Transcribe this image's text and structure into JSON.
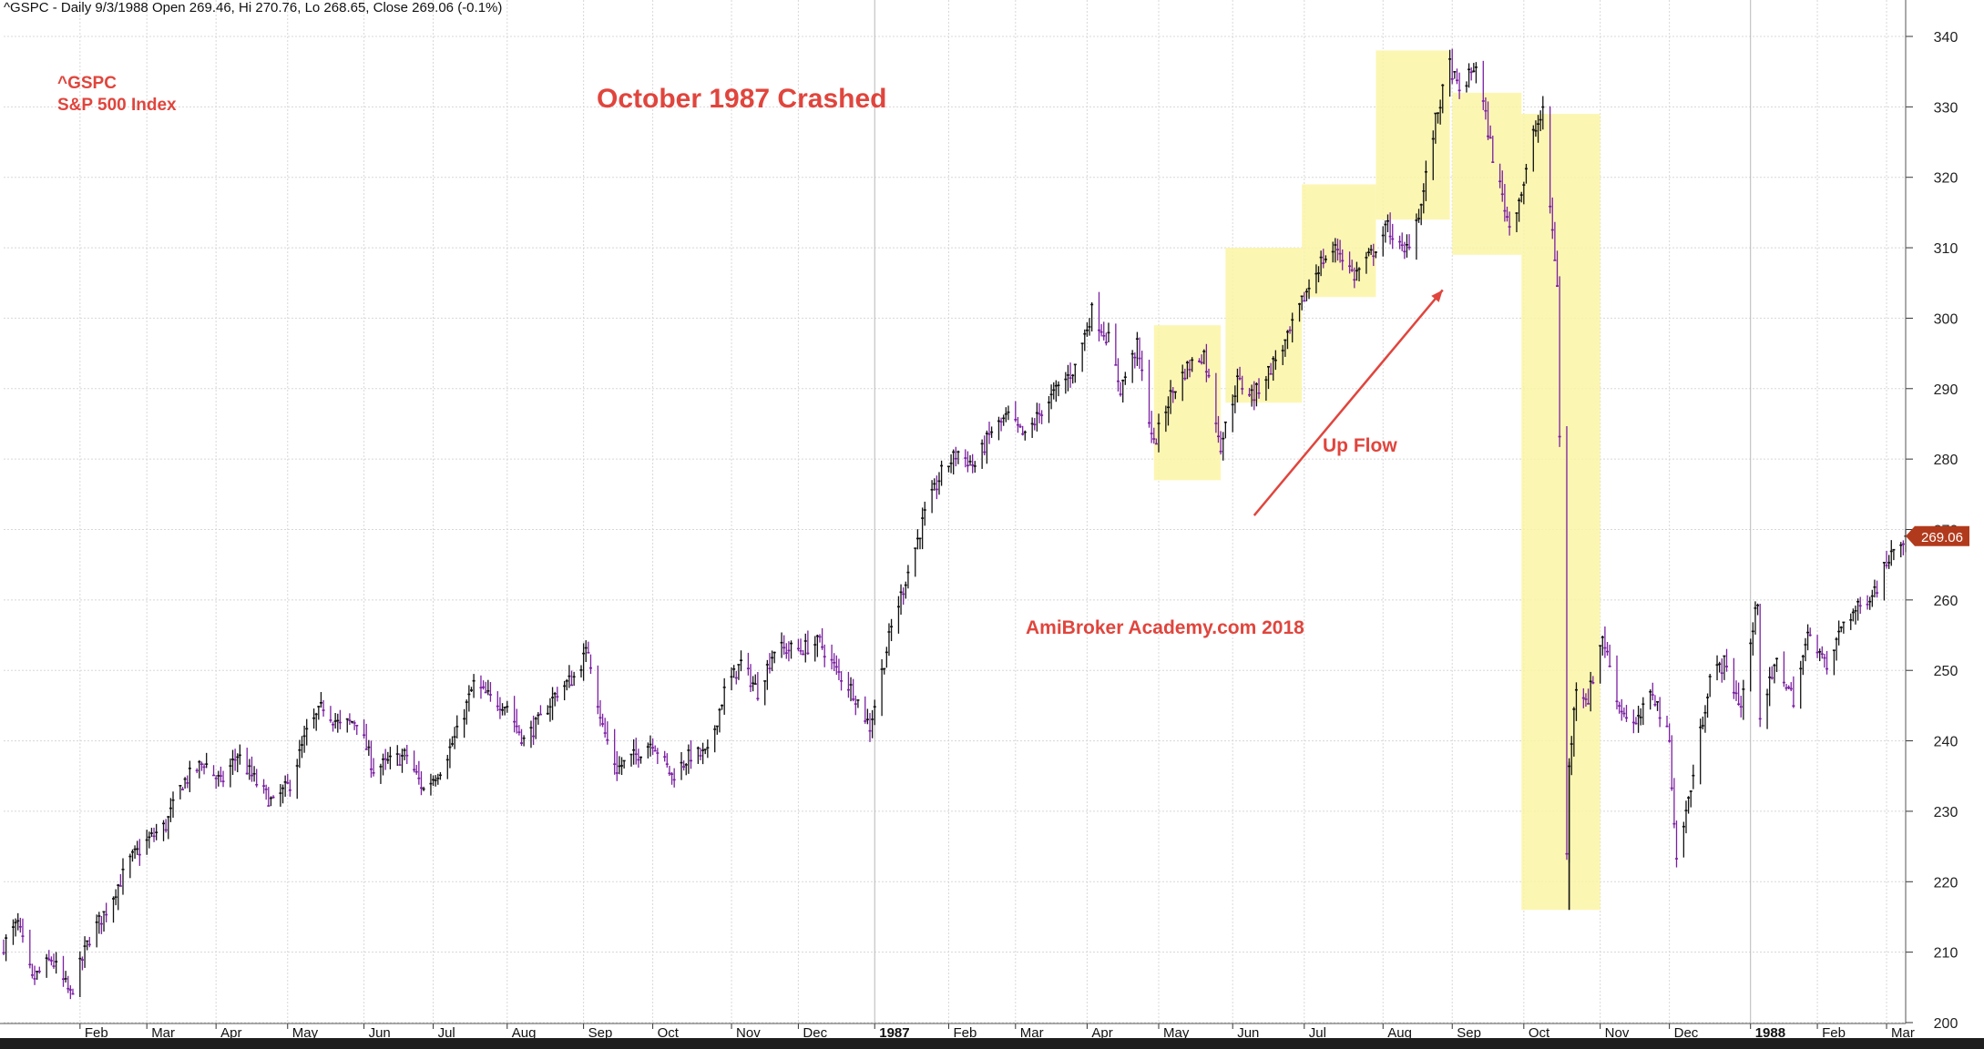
{
  "header": {
    "info": "^GSPC - Daily 9/3/1988 Open 269.46, Hi 270.76, Lo 268.65, Close 269.06 (-0.1%)"
  },
  "annotations": {
    "ticker": "^GSPC",
    "index_name": "S&P 500 Index",
    "title": "October 1987 Crashed",
    "up_flow": "Up Flow",
    "watermark": "AmiBroker Academy.com  2018"
  },
  "colors": {
    "up_bar": "#111111",
    "down_bar": "#7b1fa2",
    "highlight": "#fbf4a6",
    "annotation": "#e0453d",
    "price_tag": "#b23a1c",
    "grid": "#d8d8d8"
  },
  "chart_data": {
    "type": "candlestick",
    "y_axis": {
      "min": 200,
      "max": 340,
      "side": "right",
      "ticks": [
        200,
        210,
        220,
        230,
        240,
        250,
        260,
        270,
        280,
        290,
        300,
        310,
        320,
        330,
        340
      ]
    },
    "x_axis": {
      "start_date": "1986-01-02",
      "end_date": "1988-03-09",
      "months": [
        {
          "label": "Feb",
          "date": "1986-02-03"
        },
        {
          "label": "Mar",
          "date": "1986-03-03"
        },
        {
          "label": "Apr",
          "date": "1986-04-01"
        },
        {
          "label": "May",
          "date": "1986-05-01"
        },
        {
          "label": "Jun",
          "date": "1986-06-02"
        },
        {
          "label": "Jul",
          "date": "1986-07-01"
        },
        {
          "label": "Aug",
          "date": "1986-08-01"
        },
        {
          "label": "Sep",
          "date": "1986-09-02"
        },
        {
          "label": "Oct",
          "date": "1986-10-01"
        },
        {
          "label": "Nov",
          "date": "1986-11-03"
        },
        {
          "label": "Dec",
          "date": "1986-12-01"
        },
        {
          "label": "1987",
          "date": "1987-01-02",
          "bold": true
        },
        {
          "label": "Feb",
          "date": "1987-02-02"
        },
        {
          "label": "Mar",
          "date": "1987-03-02"
        },
        {
          "label": "Apr",
          "date": "1987-04-01"
        },
        {
          "label": "May",
          "date": "1987-05-01"
        },
        {
          "label": "Jun",
          "date": "1987-06-01"
        },
        {
          "label": "Jul",
          "date": "1987-07-01"
        },
        {
          "label": "Aug",
          "date": "1987-08-03"
        },
        {
          "label": "Sep",
          "date": "1987-09-01"
        },
        {
          "label": "Oct",
          "date": "1987-10-01"
        },
        {
          "label": "Nov",
          "date": "1987-11-02"
        },
        {
          "label": "Dec",
          "date": "1987-12-01"
        },
        {
          "label": "1988",
          "date": "1988-01-04",
          "bold": true
        },
        {
          "label": "Feb",
          "date": "1988-02-01"
        },
        {
          "label": "Mar",
          "date": "1988-03-01"
        }
      ]
    },
    "series": [
      {
        "name": "^GSPC",
        "closing_path": [
          [
            "1986-01-02",
            211
          ],
          [
            "1986-01-08",
            214
          ],
          [
            "1986-01-14",
            206
          ],
          [
            "1986-01-22",
            209
          ],
          [
            "1986-01-30",
            204
          ],
          [
            "1986-02-07",
            212
          ],
          [
            "1986-02-14",
            216
          ],
          [
            "1986-02-24",
            223
          ],
          [
            "1986-03-04",
            226
          ],
          [
            "1986-03-11",
            228
          ],
          [
            "1986-03-18",
            234
          ],
          [
            "1986-03-27",
            237
          ],
          [
            "1986-04-03",
            234
          ],
          [
            "1986-04-10",
            238
          ],
          [
            "1986-04-18",
            234
          ],
          [
            "1986-04-25",
            231
          ],
          [
            "1986-05-02",
            234
          ],
          [
            "1986-05-09",
            241
          ],
          [
            "1986-05-16",
            245
          ],
          [
            "1986-05-23",
            242
          ],
          [
            "1986-05-30",
            243
          ],
          [
            "1986-06-06",
            236
          ],
          [
            "1986-06-13",
            237
          ],
          [
            "1986-06-20",
            238
          ],
          [
            "1986-06-27",
            233
          ],
          [
            "1986-07-04",
            236
          ],
          [
            "1986-07-11",
            241
          ],
          [
            "1986-07-18",
            248
          ],
          [
            "1986-07-25",
            246
          ],
          [
            "1986-08-01",
            245
          ],
          [
            "1986-08-08",
            240
          ],
          [
            "1986-08-15",
            243
          ],
          [
            "1986-08-22",
            247
          ],
          [
            "1986-08-29",
            249
          ],
          [
            "1986-09-04",
            253
          ],
          [
            "1986-09-10",
            242
          ],
          [
            "1986-09-16",
            236
          ],
          [
            "1986-09-24",
            238
          ],
          [
            "1986-10-01",
            240
          ],
          [
            "1986-10-09",
            235
          ],
          [
            "1986-10-17",
            238
          ],
          [
            "1986-10-24",
            238
          ],
          [
            "1986-10-31",
            247
          ],
          [
            "1986-11-07",
            251
          ],
          [
            "1986-11-14",
            247
          ],
          [
            "1986-11-21",
            253
          ],
          [
            "1986-12-02",
            253
          ],
          [
            "1986-12-10",
            254
          ],
          [
            "1986-12-17",
            250
          ],
          [
            "1986-12-24",
            247
          ],
          [
            "1986-12-31",
            242
          ],
          [
            "1987-01-09",
            256
          ],
          [
            "1987-01-16",
            264
          ],
          [
            "1987-01-23",
            272
          ],
          [
            "1987-01-30",
            278
          ],
          [
            "1987-02-06",
            281
          ],
          [
            "1987-02-13",
            279
          ],
          [
            "1987-02-20",
            284
          ],
          [
            "1987-02-27",
            286
          ],
          [
            "1987-03-06",
            283
          ],
          [
            "1987-03-13",
            287
          ],
          [
            "1987-03-20",
            290
          ],
          [
            "1987-03-27",
            293
          ],
          [
            "1987-04-03",
            301
          ],
          [
            "1987-04-10",
            297
          ],
          [
            "1987-04-15",
            290
          ],
          [
            "1987-04-22",
            296
          ],
          [
            "1987-04-29",
            282
          ],
          [
            "1987-05-06",
            289
          ],
          [
            "1987-05-13",
            293
          ],
          [
            "1987-05-20",
            295
          ],
          [
            "1987-05-27",
            282
          ],
          [
            "1987-06-03",
            291
          ],
          [
            "1987-06-10",
            289
          ],
          [
            "1987-06-17",
            293
          ],
          [
            "1987-06-24",
            297
          ],
          [
            "1987-07-01",
            303
          ],
          [
            "1987-07-08",
            308
          ],
          [
            "1987-07-15",
            310
          ],
          [
            "1987-07-22",
            306
          ],
          [
            "1987-07-29",
            309
          ],
          [
            "1987-08-05",
            313
          ],
          [
            "1987-08-12",
            309
          ],
          [
            "1987-08-19",
            316
          ],
          [
            "1987-08-25",
            328
          ],
          [
            "1987-08-31",
            336
          ],
          [
            "1987-09-04",
            332
          ],
          [
            "1987-09-11",
            336
          ],
          [
            "1987-09-18",
            323
          ],
          [
            "1987-09-25",
            313
          ],
          [
            "1987-10-01",
            319
          ],
          [
            "1987-10-05",
            326
          ],
          [
            "1987-10-09",
            329
          ],
          [
            "1987-10-12",
            316
          ],
          [
            "1987-10-15",
            305
          ],
          [
            "1987-10-16",
            283
          ],
          [
            "1987-10-19",
            224
          ],
          [
            "1987-10-20",
            236
          ],
          [
            "1987-10-23",
            248
          ],
          [
            "1987-10-28",
            246
          ],
          [
            "1987-11-03",
            255
          ],
          [
            "1987-11-10",
            245
          ],
          [
            "1987-11-17",
            242
          ],
          [
            "1987-11-24",
            247
          ],
          [
            "1987-12-01",
            240
          ],
          [
            "1987-12-04",
            223
          ],
          [
            "1987-12-11",
            235
          ],
          [
            "1987-12-18",
            249
          ],
          [
            "1987-12-24",
            251
          ],
          [
            "1987-12-31",
            245
          ],
          [
            "1988-01-07",
            260
          ],
          [
            "1988-01-08",
            244
          ],
          [
            "1988-01-15",
            251
          ],
          [
            "1988-01-22",
            246
          ],
          [
            "1988-01-29",
            256
          ],
          [
            "1988-02-05",
            250
          ],
          [
            "1988-02-12",
            257
          ],
          [
            "1988-02-19",
            259
          ],
          [
            "1988-02-26",
            262
          ],
          [
            "1988-03-04",
            268
          ],
          [
            "1988-03-09",
            269.06
          ]
        ]
      }
    ],
    "highlight_boxes": [
      {
        "from": "1987-04-29",
        "to": "1987-05-27",
        "low": 277,
        "high": 299
      },
      {
        "from": "1987-05-29",
        "to": "1987-06-30",
        "low": 288,
        "high": 310
      },
      {
        "from": "1987-06-30",
        "to": "1987-07-31",
        "low": 303,
        "high": 319
      },
      {
        "from": "1987-07-31",
        "to": "1987-08-31",
        "low": 314,
        "high": 338
      },
      {
        "from": "1987-09-01",
        "to": "1987-09-30",
        "low": 309,
        "high": 332
      },
      {
        "from": "1987-09-30",
        "to": "1987-11-02",
        "low": 216,
        "high": 329
      }
    ],
    "arrow": {
      "from": [
        "1987-06-10",
        272
      ],
      "to": [
        "1987-08-28",
        304
      ]
    },
    "last_price": {
      "value": 269.06,
      "label": "269.06"
    }
  }
}
